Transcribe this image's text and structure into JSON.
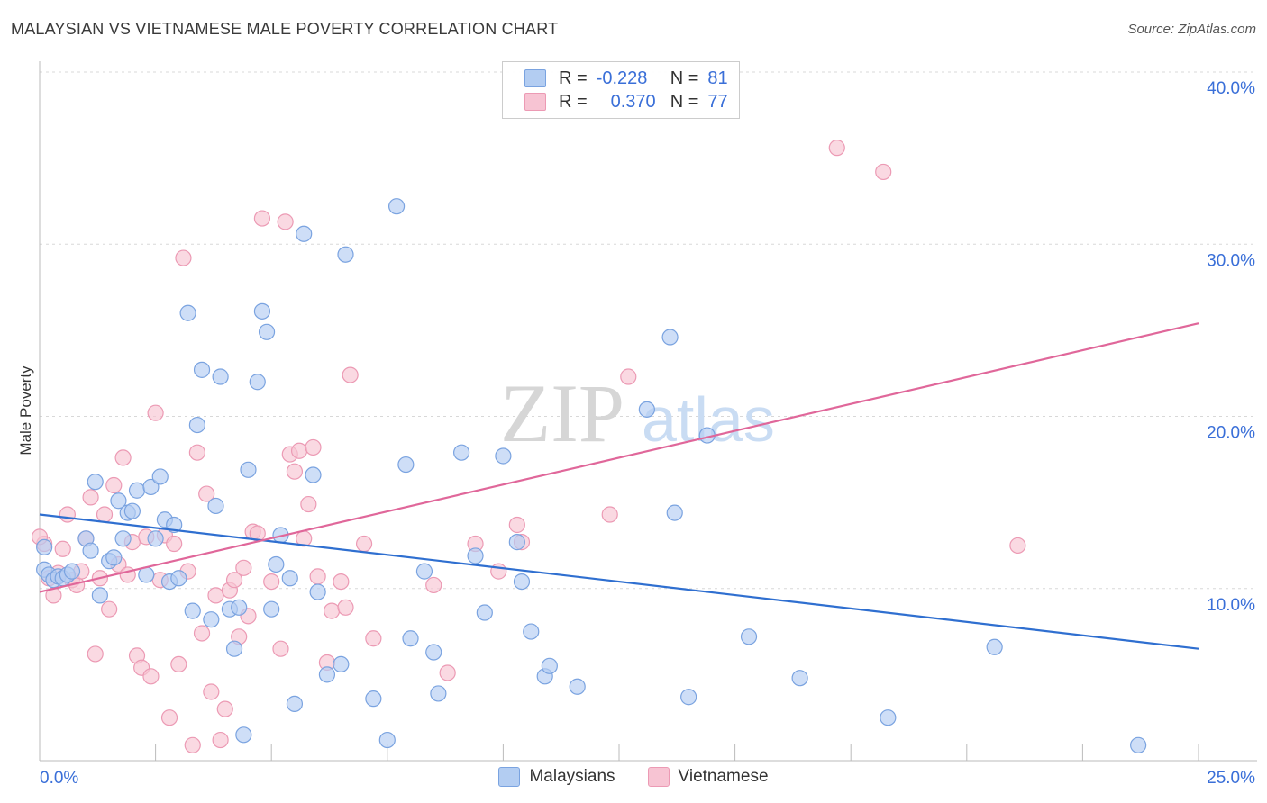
{
  "title": "MALAYSIAN VS VIETNAMESE MALE POVERTY CORRELATION CHART",
  "source": "Source: ZipAtlas.com",
  "watermark": {
    "zip": "ZIP",
    "atlas": "atlas"
  },
  "legend": {
    "rows": [
      {
        "r_label": "R =",
        "r_value": "-0.228",
        "n_label": "N =",
        "n_value": "81"
      },
      {
        "r_label": "R =",
        "r_value": "0.370",
        "n_label": "N =",
        "n_value": "77"
      }
    ]
  },
  "colors": {
    "blue_fill": "#b3cdf2",
    "blue_stroke": "#7aa3e0",
    "blue_line": "#2f6fd0",
    "pink_fill": "#f7c4d3",
    "pink_stroke": "#ec9ab4",
    "pink_line": "#e0679a",
    "axis_text": "#3a6fd8",
    "grid": "#d8d8d8"
  },
  "chart_data": {
    "type": "scatter",
    "title": "MALAYSIAN VS VIETNAMESE MALE POVERTY CORRELATION CHART",
    "xlabel": "",
    "ylabel": "Male Poverty",
    "xlim": [
      0,
      25
    ],
    "ylim": [
      0,
      40
    ],
    "x_tick_labels": [
      "0.0%",
      "25.0%"
    ],
    "y_tick_labels": [
      "10.0%",
      "20.0%",
      "30.0%",
      "40.0%"
    ],
    "y_ticks": [
      10,
      20,
      30,
      40
    ],
    "legend_position": "bottom",
    "series": [
      {
        "name": "Malaysians",
        "color": "#7aa3e0",
        "trend": {
          "x": [
            0,
            25
          ],
          "y": [
            14.3,
            6.5
          ]
        },
        "points": [
          [
            0.1,
            11.1
          ],
          [
            0.1,
            12.4
          ],
          [
            0.2,
            10.8
          ],
          [
            0.3,
            10.5
          ],
          [
            0.4,
            10.7
          ],
          [
            0.5,
            10.6
          ],
          [
            0.6,
            10.8
          ],
          [
            0.7,
            11.0
          ],
          [
            1.0,
            12.9
          ],
          [
            1.1,
            12.2
          ],
          [
            1.2,
            16.2
          ],
          [
            1.3,
            9.6
          ],
          [
            1.5,
            11.6
          ],
          [
            1.6,
            11.8
          ],
          [
            1.7,
            15.1
          ],
          [
            1.8,
            12.9
          ],
          [
            1.9,
            14.4
          ],
          [
            2.0,
            14.5
          ],
          [
            2.1,
            15.7
          ],
          [
            2.3,
            10.8
          ],
          [
            2.4,
            15.9
          ],
          [
            2.5,
            12.9
          ],
          [
            2.6,
            16.5
          ],
          [
            2.7,
            14.0
          ],
          [
            2.8,
            10.4
          ],
          [
            2.9,
            13.7
          ],
          [
            3.0,
            10.6
          ],
          [
            3.2,
            26.0
          ],
          [
            3.3,
            8.7
          ],
          [
            3.4,
            19.5
          ],
          [
            3.5,
            22.7
          ],
          [
            3.7,
            8.2
          ],
          [
            3.8,
            14.8
          ],
          [
            3.9,
            22.3
          ],
          [
            4.1,
            8.8
          ],
          [
            4.2,
            6.5
          ],
          [
            4.3,
            8.9
          ],
          [
            4.4,
            1.5
          ],
          [
            4.5,
            16.9
          ],
          [
            4.7,
            22.0
          ],
          [
            4.8,
            26.1
          ],
          [
            4.9,
            24.9
          ],
          [
            5.0,
            8.8
          ],
          [
            5.1,
            11.4
          ],
          [
            5.2,
            13.1
          ],
          [
            5.4,
            10.6
          ],
          [
            5.5,
            3.3
          ],
          [
            5.7,
            30.6
          ],
          [
            5.9,
            16.6
          ],
          [
            6.0,
            9.8
          ],
          [
            6.2,
            5.0
          ],
          [
            6.5,
            5.6
          ],
          [
            6.6,
            29.4
          ],
          [
            7.2,
            3.6
          ],
          [
            7.5,
            1.2
          ],
          [
            7.7,
            32.2
          ],
          [
            7.9,
            17.2
          ],
          [
            8.0,
            7.1
          ],
          [
            8.3,
            11.0
          ],
          [
            8.5,
            6.3
          ],
          [
            8.6,
            3.9
          ],
          [
            9.1,
            17.9
          ],
          [
            9.4,
            11.9
          ],
          [
            9.6,
            8.6
          ],
          [
            10.0,
            17.7
          ],
          [
            10.3,
            12.7
          ],
          [
            10.4,
            10.4
          ],
          [
            10.6,
            7.5
          ],
          [
            10.9,
            4.9
          ],
          [
            11.0,
            5.5
          ],
          [
            11.6,
            4.3
          ],
          [
            13.1,
            20.4
          ],
          [
            13.6,
            24.6
          ],
          [
            13.7,
            14.4
          ],
          [
            14.0,
            3.7
          ],
          [
            14.4,
            18.9
          ],
          [
            15.3,
            7.2
          ],
          [
            16.4,
            4.8
          ],
          [
            18.3,
            2.5
          ],
          [
            20.6,
            6.6
          ],
          [
            23.7,
            0.9
          ]
        ]
      },
      {
        "name": "Vietnamese",
        "color": "#ec9ab4",
        "trend": {
          "x": [
            0,
            25
          ],
          "y": [
            9.8,
            25.4
          ]
        },
        "points": [
          [
            0.1,
            12.6
          ],
          [
            0.2,
            10.6
          ],
          [
            0.3,
            9.6
          ],
          [
            0.4,
            10.9
          ],
          [
            0.5,
            12.3
          ],
          [
            0.6,
            14.3
          ],
          [
            0.7,
            10.5
          ],
          [
            0.8,
            10.2
          ],
          [
            0.9,
            11.0
          ],
          [
            1.0,
            12.9
          ],
          [
            1.1,
            15.3
          ],
          [
            1.2,
            6.2
          ],
          [
            1.3,
            10.6
          ],
          [
            1.4,
            14.3
          ],
          [
            1.5,
            8.8
          ],
          [
            1.6,
            16.0
          ],
          [
            1.7,
            11.4
          ],
          [
            1.8,
            17.6
          ],
          [
            1.9,
            10.8
          ],
          [
            2.0,
            12.7
          ],
          [
            2.1,
            6.1
          ],
          [
            2.2,
            5.4
          ],
          [
            2.3,
            13.0
          ],
          [
            2.4,
            4.9
          ],
          [
            2.5,
            20.2
          ],
          [
            2.6,
            10.5
          ],
          [
            2.7,
            13.1
          ],
          [
            2.8,
            2.5
          ],
          [
            2.9,
            12.6
          ],
          [
            3.0,
            5.6
          ],
          [
            3.1,
            29.2
          ],
          [
            3.2,
            11.0
          ],
          [
            3.3,
            0.9
          ],
          [
            3.4,
            17.9
          ],
          [
            3.5,
            7.4
          ],
          [
            3.6,
            15.5
          ],
          [
            3.7,
            4.0
          ],
          [
            3.8,
            9.6
          ],
          [
            3.9,
            1.2
          ],
          [
            4.0,
            3.0
          ],
          [
            4.1,
            9.9
          ],
          [
            4.2,
            10.5
          ],
          [
            4.3,
            7.2
          ],
          [
            4.4,
            11.2
          ],
          [
            4.5,
            8.4
          ],
          [
            4.6,
            13.3
          ],
          [
            4.7,
            13.2
          ],
          [
            4.8,
            31.5
          ],
          [
            5.0,
            10.4
          ],
          [
            5.2,
            6.5
          ],
          [
            5.3,
            31.3
          ],
          [
            5.4,
            17.8
          ],
          [
            5.5,
            16.8
          ],
          [
            5.6,
            18.0
          ],
          [
            5.7,
            12.9
          ],
          [
            5.8,
            14.9
          ],
          [
            5.9,
            18.2
          ],
          [
            6.0,
            10.7
          ],
          [
            6.2,
            5.7
          ],
          [
            6.3,
            8.7
          ],
          [
            6.5,
            10.4
          ],
          [
            6.6,
            8.9
          ],
          [
            6.7,
            22.4
          ],
          [
            7.0,
            12.6
          ],
          [
            7.2,
            7.1
          ],
          [
            8.5,
            10.2
          ],
          [
            8.8,
            5.1
          ],
          [
            9.4,
            12.6
          ],
          [
            9.9,
            11.0
          ],
          [
            10.3,
            13.7
          ],
          [
            10.4,
            12.7
          ],
          [
            12.3,
            14.3
          ],
          [
            12.7,
            22.3
          ],
          [
            17.2,
            35.6
          ],
          [
            18.2,
            34.2
          ],
          [
            21.1,
            12.5
          ],
          [
            0.0,
            13.0
          ]
        ]
      }
    ]
  },
  "bottom_legend": {
    "series1": "Malaysians",
    "series2": "Vietnamese"
  }
}
